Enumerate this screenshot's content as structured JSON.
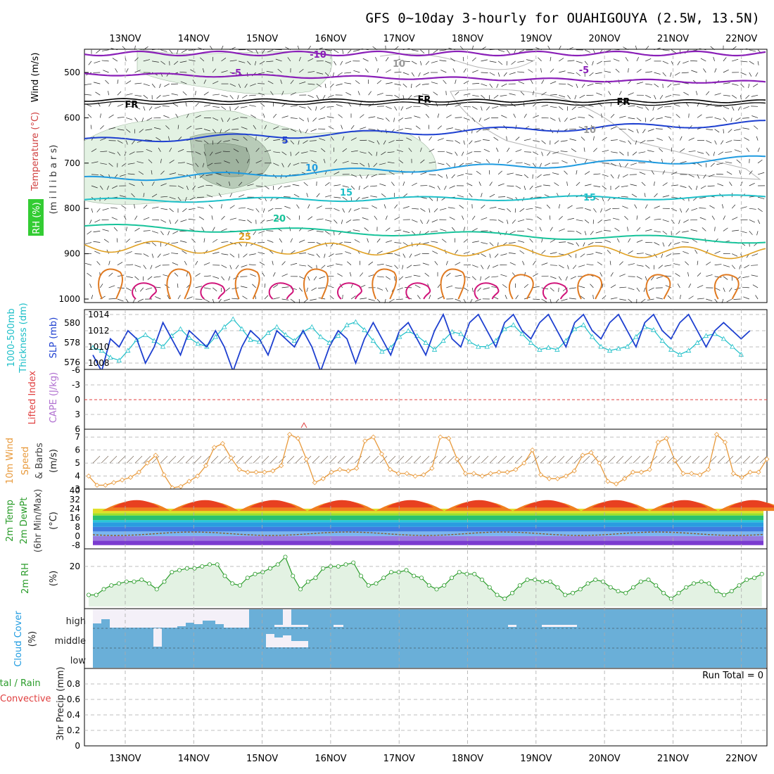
{
  "title": "GFS 0~10day 3-hourly for OUAHIGOUYA (2.5W, 13.5N)",
  "dates": [
    "13NOV",
    "14NOV",
    "15NOV",
    "16NOV",
    "17NOV",
    "18NOV",
    "19NOV",
    "20NOV",
    "21NOV",
    "22NOV"
  ],
  "colors": {
    "purple": "#8a1fb8",
    "black": "#000000",
    "blue": "#1d3fd0",
    "lightblue": "#1f9be0",
    "cyan": "#1dbfc8",
    "teal": "#17c39a",
    "gold": "#e0a021",
    "orange": "#e07a21",
    "magenta": "#d0147a",
    "rh_fill": "#e3f2e3",
    "rh_dark": "#aabfaa",
    "cloud_bg": "#6aafd8",
    "cloud_fill": "#f4f0f8",
    "slp": "#1d3fd0",
    "thick": "#1dbfc8",
    "wind": "#e89a3c",
    "rh2m": "#2a9c2a",
    "grid": "#aaaaaa"
  },
  "panels": {
    "upper": {
      "axis_label_1": "Wind (m/s)",
      "axis_label_2": "Temperature (°C)",
      "axis_label_3": "(m i l l i b a r s)",
      "axis_label_rh": "RH (%)",
      "ticks": [
        "500",
        "600",
        "700",
        "800",
        "900",
        "1000"
      ],
      "contour_labels": [
        "-10",
        "-5",
        "-5",
        "FR",
        "FR",
        "FR",
        "5",
        "10",
        "15",
        "15",
        "20",
        "25",
        "10",
        "10"
      ]
    },
    "slp": {
      "label_1": "1000-500mb",
      "label_2": "Thickness (dm)",
      "label_3": "SLP (mb)",
      "ticks_left": [
        "580",
        "578",
        "576"
      ],
      "ticks_right": [
        "1014",
        "1012",
        "1010",
        "1008"
      ]
    },
    "cape": {
      "label_1": "Lifted Index",
      "label_2": "CAPE (J/kg)",
      "ticks": [
        "-6",
        "-3",
        "0",
        "3",
        "6"
      ]
    },
    "wind": {
      "label_1": "10m Wind",
      "label_2": "Speed",
      "label_3": "& Barbs",
      "label_4": "(m/s)",
      "ticks": [
        "7",
        "6",
        "5",
        "4",
        "3"
      ]
    },
    "temp": {
      "label_1": "2m Temp",
      "label_2": "2m DewPt",
      "label_3": "(6hr Min/Max)",
      "label_4": "(°C)",
      "ticks": [
        "40",
        "32",
        "24",
        "16",
        "8",
        "0",
        "-8"
      ]
    },
    "rh": {
      "label_1": "2m RH",
      "label_2": "(%)",
      "ticks": [
        "20"
      ]
    },
    "cloud": {
      "label_1": "Cloud Cover",
      "label_2": "(%)",
      "levels": [
        "high",
        "middle",
        "low"
      ]
    },
    "precip": {
      "label_1": "Total / Rain",
      "label_2": "Convective",
      "label_3": "3hr Precip (mm)",
      "ticks": [
        "0.8",
        "0.6",
        "0.4",
        "0.2",
        "0"
      ],
      "run_total": "Run Total = 0"
    }
  },
  "chart_data": {
    "type": "line",
    "x_dates": [
      "13NOV",
      "14NOV",
      "15NOV",
      "16NOV",
      "17NOV",
      "18NOV",
      "19NOV",
      "20NOV",
      "21NOV",
      "22NOV"
    ],
    "slp_mb": [
      1009,
      1007,
      1011,
      1010,
      1012,
      1011,
      1008,
      1010,
      1013,
      1011,
      1009,
      1012,
      1011,
      1010,
      1012,
      1010,
      1007,
      1010,
      1012,
      1011,
      1009,
      1012,
      1011,
      1010,
      1012,
      1010,
      1007,
      1010,
      1012,
      1011,
      1008,
      1011,
      1013,
      1011,
      1009,
      1012,
      1013,
      1011,
      1009,
      1012,
      1014,
      1011,
      1010,
      1013,
      1014,
      1012,
      1010,
      1013,
      1014,
      1012,
      1011,
      1013,
      1014,
      1012,
      1010,
      1013,
      1014,
      1012,
      1011,
      1013,
      1014,
      1012,
      1010,
      1013,
      1014,
      1012,
      1011,
      1013,
      1014,
      1012,
      1010,
      1012,
      1013,
      1012,
      1011,
      1012
    ],
    "thickness_dm": [
      577.5,
      577.2,
      576.5,
      576.2,
      577.2,
      578.3,
      578.8,
      578.2,
      577.6,
      578.7,
      579.4,
      578.5,
      577.9,
      577.6,
      578.6,
      579.6,
      580.4,
      579.4,
      578.3,
      578.1,
      579,
      579.6,
      578.8,
      578.2,
      579.1,
      579.6,
      578.6,
      578,
      578.7,
      579.8,
      580.1,
      579.3,
      578.2,
      577.1,
      577.5,
      578.6,
      579.2,
      578.7,
      578,
      577.3,
      578.2,
      579.1,
      578.9,
      578.1,
      577.6,
      577.6,
      578.2,
      579.4,
      579.8,
      578.9,
      578,
      577.3,
      577.5,
      577.3,
      578.2,
      579.4,
      579.8,
      578.6,
      577.6,
      577.2,
      577.4,
      577.6,
      578.6,
      579.6,
      579.3,
      578.2,
      577.3,
      576.8,
      577.2,
      578,
      578.7,
      578.9,
      578.4,
      577.6,
      576.8
    ],
    "wind10m_ms": [
      4,
      3.3,
      3.3,
      3.5,
      3.7,
      3.9,
      4.3,
      5,
      5.6,
      4.1,
      3.1,
      3.2,
      3.6,
      4,
      4.8,
      6.2,
      6.5,
      5.4,
      4.5,
      4.3,
      4.3,
      4.3,
      4.4,
      4.8,
      7.2,
      6.9,
      5.3,
      3.5,
      3.8,
      4.3,
      4.5,
      4.4,
      4.6,
      6.7,
      7,
      5.7,
      4.5,
      4.2,
      4.2,
      4,
      4.1,
      4.6,
      7,
      6.9,
      5.3,
      4.2,
      4.2,
      4,
      4.2,
      4.3,
      4.3,
      4.5,
      5,
      6,
      4.1,
      3.8,
      3.8,
      4,
      4.4,
      5.6,
      5.8,
      5,
      3.6,
      3.4,
      3.8,
      4.3,
      4.3,
      4.5,
      6.6,
      6.9,
      5.2,
      4.2,
      4.2,
      4.1,
      4.5,
      7.2,
      6.6,
      4.2,
      3.9,
      4.3,
      4.3,
      5.3
    ],
    "rh2m_pct": [
      5,
      5,
      8,
      10,
      11,
      12,
      12,
      13,
      11,
      8,
      12,
      17,
      18,
      19,
      19,
      20,
      21,
      21,
      15,
      11,
      10,
      14,
      16,
      17,
      19,
      21,
      25,
      15,
      8,
      12,
      14,
      19,
      20,
      20,
      21,
      22,
      15,
      10,
      11,
      14,
      17,
      17,
      18,
      15,
      14,
      10,
      8,
      10,
      14,
      17,
      16,
      16,
      13,
      9,
      5,
      3,
      6,
      10,
      13,
      13,
      12,
      12,
      9,
      5,
      6,
      8,
      11,
      13,
      12,
      9,
      7,
      6,
      9,
      12,
      13,
      10,
      6,
      3,
      6,
      9,
      11,
      12,
      11,
      7,
      5,
      7,
      10,
      13,
      14,
      16
    ]
  }
}
